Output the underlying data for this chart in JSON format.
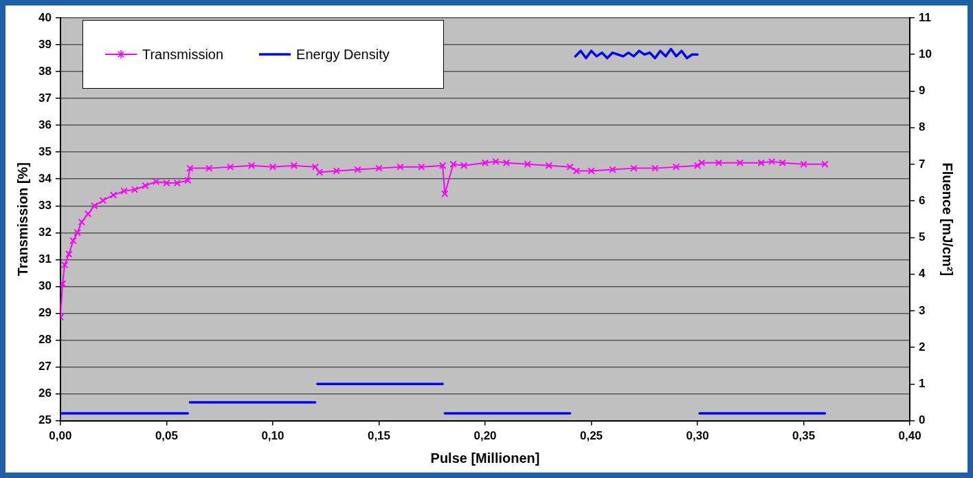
{
  "chart_data": {
    "type": "line",
    "xlabel": "Pulse [Millionen]",
    "ylabel": "Transmission [%]",
    "y2label": "Fluence [mJ/cm²]",
    "xlim": [
      0,
      0.4
    ],
    "xticks": [
      {
        "value": 0,
        "label": "0,00"
      },
      {
        "value": 0.05,
        "label": "0,05"
      },
      {
        "value": 0.1,
        "label": "0,10"
      },
      {
        "value": 0.15,
        "label": "0,15"
      },
      {
        "value": 0.2,
        "label": "0,20"
      },
      {
        "value": 0.25,
        "label": "0,25"
      },
      {
        "value": 0.3,
        "label": "0,30"
      },
      {
        "value": 0.35,
        "label": "0,35"
      },
      {
        "value": 0.4,
        "label": "0,40"
      }
    ],
    "ylim": [
      25,
      40
    ],
    "yticks": [
      25,
      26,
      27,
      28,
      29,
      30,
      31,
      32,
      33,
      34,
      35,
      36,
      37,
      38,
      39,
      40
    ],
    "y2lim": [
      0,
      11
    ],
    "y2ticks": [
      0,
      1,
      2,
      3,
      4,
      5,
      6,
      7,
      8,
      9,
      10,
      11
    ],
    "grid": "y",
    "legend": "top left",
    "line_style": "solid",
    "series": [
      {
        "name": "Transmission",
        "color": "#ff00ff",
        "marker": "cross",
        "x": [
          0,
          0.001,
          0.002,
          0.004,
          0.006,
          0.008,
          0.01,
          0.013,
          0.016,
          0.02,
          0.025,
          0.03,
          0.035,
          0.04,
          0.045,
          0.05,
          0.055,
          0.06,
          0.061,
          0.07,
          0.08,
          0.09,
          0.1,
          0.11,
          0.12,
          0.122,
          0.13,
          0.14,
          0.15,
          0.16,
          0.17,
          0.18,
          0.181,
          0.185,
          0.19,
          0.2,
          0.205,
          0.21,
          0.22,
          0.23,
          0.24,
          0.243,
          0.25,
          0.26,
          0.27,
          0.28,
          0.29,
          0.3,
          0.302,
          0.31,
          0.32,
          0.33,
          0.335,
          0.34,
          0.35,
          0.36
        ],
        "values": [
          28.85,
          30.1,
          30.8,
          31.2,
          31.7,
          32,
          32.4,
          32.7,
          33,
          33.2,
          33.4,
          33.55,
          33.6,
          33.75,
          33.9,
          33.85,
          33.85,
          33.95,
          34.4,
          34.4,
          34.45,
          34.5,
          34.45,
          34.5,
          34.45,
          34.25,
          34.3,
          34.35,
          34.4,
          34.45,
          34.45,
          34.5,
          33.45,
          34.55,
          34.5,
          34.6,
          34.65,
          34.6,
          34.55,
          34.5,
          34.45,
          34.3,
          34.3,
          34.35,
          34.4,
          34.4,
          34.45,
          34.5,
          34.6,
          34.6,
          34.6,
          34.6,
          34.65,
          34.6,
          34.55,
          34.55
        ]
      },
      {
        "name": "Energy Density",
        "color": "#0000ff",
        "marker": "none",
        "axis": "y2",
        "x": [
          0,
          0.06,
          0.0605,
          0.061,
          0.12,
          0.1205,
          0.121,
          0.18,
          0.1805,
          0.181,
          0.24,
          0.2405,
          0.2425,
          0.245,
          0.2475,
          0.25,
          0.2525,
          0.255,
          0.2575,
          0.26,
          0.2625,
          0.265,
          0.2675,
          0.27,
          0.2725,
          0.275,
          0.2775,
          0.28,
          0.2825,
          0.285,
          0.2875,
          0.29,
          0.2925,
          0.295,
          0.2975,
          0.3,
          0.3005,
          0.301,
          0.36
        ],
        "values": [
          0.2,
          0.2,
          null,
          0.5,
          0.5,
          null,
          1,
          1,
          null,
          0.2,
          0.2,
          null,
          9.95,
          10.1,
          9.9,
          10.1,
          9.95,
          10.05,
          9.9,
          10.05,
          10,
          9.95,
          10.05,
          9.95,
          10.1,
          10,
          10.05,
          9.9,
          10.1,
          9.95,
          10.15,
          9.95,
          10.1,
          9.9,
          10,
          10,
          null,
          0.2,
          0.2
        ]
      }
    ]
  }
}
